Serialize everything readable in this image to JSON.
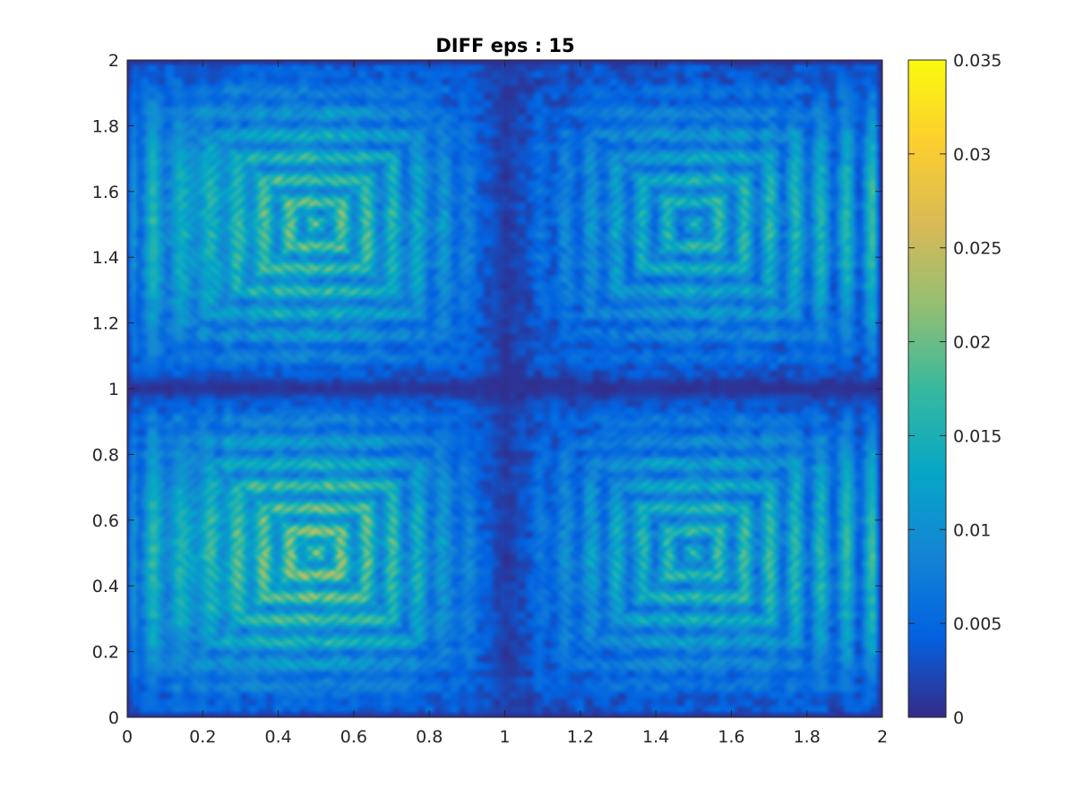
{
  "chart_data": {
    "type": "heatmap",
    "title": "DIFF eps : 15",
    "xlabel": "",
    "ylabel": "",
    "xlim": [
      0,
      2
    ],
    "ylim": [
      0,
      2
    ],
    "x_ticks": [
      "0",
      "0.2",
      "0.4",
      "0.6",
      "0.8",
      "1",
      "1.2",
      "1.4",
      "1.6",
      "1.8",
      "2"
    ],
    "y_ticks": [
      "0",
      "0.2",
      "0.4",
      "0.6",
      "0.8",
      "1",
      "1.2",
      "1.4",
      "1.6",
      "1.8",
      "2"
    ],
    "colorbar": {
      "range": [
        0,
        0.035
      ],
      "ticks": [
        "0",
        "0.005",
        "0.01",
        "0.015",
        "0.02",
        "0.025",
        "0.03",
        "0.035"
      ],
      "colormap": "parula"
    },
    "colormap_stops": [
      "#352a87",
      "#0363e1",
      "#1485d4",
      "#06a7c6",
      "#38b99e",
      "#92bf73",
      "#d9ba56",
      "#fcce2e",
      "#f9fb0e"
    ],
    "grid": false
  }
}
